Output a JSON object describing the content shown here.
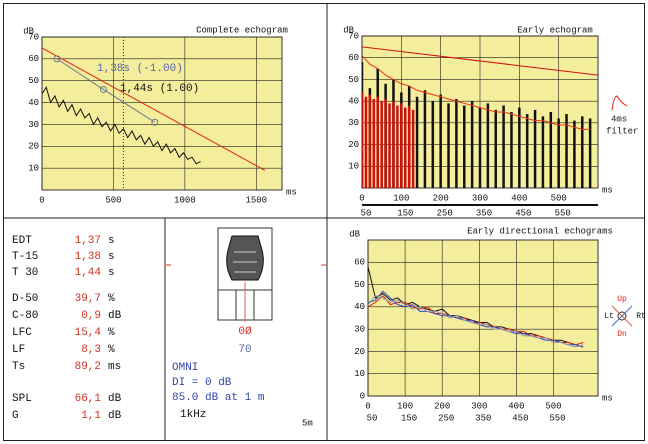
{
  "chart_data": [
    {
      "type": "line",
      "title": "Complete echogram",
      "ylabel": "dB",
      "xlabel": "ms",
      "xlim": [
        0,
        1680
      ],
      "ylim": [
        0,
        70
      ],
      "xticks": [
        0,
        500,
        1000,
        1500
      ],
      "yticks": [
        10,
        20,
        30,
        40,
        50,
        60,
        70
      ],
      "grid": true,
      "cursor_x": 570,
      "annotations": [
        "1,38s (-1.00)",
        "1,44s (1.00)"
      ],
      "series": [
        {
          "style": "line",
          "color": "#111111",
          "x": [
            0,
            30,
            60,
            90,
            120,
            150,
            180,
            210,
            240,
            270,
            300,
            330,
            360,
            390,
            420,
            450,
            480,
            510,
            540,
            570,
            600,
            630,
            660,
            690,
            720,
            750,
            780,
            810,
            840,
            870,
            900,
            930,
            960,
            990,
            1020,
            1050,
            1080,
            1110
          ],
          "values": [
            44,
            47,
            40,
            43,
            38,
            41,
            36,
            39,
            34,
            37,
            33,
            35,
            30,
            33,
            29,
            31,
            27,
            30,
            26,
            28,
            24,
            27,
            23,
            25,
            21,
            24,
            20,
            22,
            18,
            21,
            17,
            19,
            15,
            17,
            14,
            15,
            12,
            13
          ]
        },
        {
          "style": "line",
          "color": "#dd2211",
          "x": [
            0,
            1560
          ],
          "values": [
            65,
            9
          ]
        },
        {
          "style": "markers",
          "color": "#6a7a8a",
          "x": [
            105,
            430,
            790
          ],
          "values": [
            60,
            46,
            31
          ]
        }
      ]
    },
    {
      "type": "line",
      "title": "Early echogram",
      "ylabel": "dB",
      "xlabel": "ms",
      "xlim": [
        0,
        600
      ],
      "ylim": [
        0,
        70
      ],
      "xticks": [
        0,
        100,
        200,
        300,
        400,
        500
      ],
      "yticks": [
        10,
        20,
        30,
        40,
        50,
        60,
        70
      ],
      "grid": true,
      "x2lim": [
        50,
        650
      ],
      "x2ticks": [
        50,
        150,
        250,
        350,
        450,
        550
      ],
      "annotations": [
        "4ms",
        "filter"
      ],
      "series": [
        {
          "style": "bars",
          "color": "#111111",
          "x": [
            0,
            20,
            40,
            60,
            80,
            100,
            120,
            140,
            160,
            180,
            200,
            220,
            240,
            260,
            280,
            300,
            320,
            340,
            360,
            380,
            400,
            420,
            440,
            460,
            480,
            500,
            520,
            540,
            560,
            580
          ],
          "values": [
            58,
            46,
            55,
            48,
            50,
            44,
            47,
            42,
            45,
            40,
            43,
            39,
            41,
            38,
            40,
            37,
            39,
            36,
            38,
            35,
            37,
            34,
            36,
            33,
            35,
            32,
            34,
            31,
            33,
            32
          ]
        },
        {
          "style": "bars",
          "color": "#cc1111",
          "x": [
            0,
            10,
            20,
            30,
            40,
            50,
            60,
            70,
            80,
            90,
            100,
            110,
            120,
            130
          ],
          "values": [
            44,
            42,
            43,
            41,
            42,
            40,
            41,
            39,
            40,
            38,
            39,
            37,
            38,
            36
          ]
        },
        {
          "style": "line",
          "color": "#ee3311",
          "x": [
            0,
            20,
            40,
            60,
            80,
            100,
            120,
            140,
            160,
            180,
            200,
            220,
            240,
            260,
            280,
            300,
            320,
            340,
            360,
            380,
            400,
            420,
            440,
            460,
            480,
            500,
            520,
            540,
            560,
            580
          ],
          "values": [
            61,
            57,
            55,
            52,
            50,
            48,
            47,
            45,
            44,
            43,
            42,
            41,
            40,
            39,
            38,
            37,
            36,
            35,
            35,
            34,
            33,
            32,
            31,
            31,
            30,
            29,
            29,
            28,
            27,
            27
          ]
        },
        {
          "style": "line",
          "color": "#cc1111",
          "x": [
            0,
            600
          ],
          "values": [
            65,
            52
          ]
        }
      ]
    },
    {
      "type": "line",
      "title": "Early directional echograms",
      "ylabel": "dB",
      "xlabel": "ms",
      "xlim": [
        0,
        620
      ],
      "ylim": [
        0,
        70
      ],
      "xticks": [
        0,
        100,
        200,
        300,
        400,
        500
      ],
      "yticks": [
        0,
        10,
        20,
        30,
        40,
        50,
        60
      ],
      "grid": true,
      "x2lim": [
        50,
        670
      ],
      "x2ticks": [
        50,
        150,
        250,
        350,
        450,
        550
      ],
      "direction_labels": [
        "Up",
        "Lt",
        "Rt",
        "Dn"
      ],
      "series": [
        {
          "style": "line",
          "color": "#111111",
          "x": [
            0,
            20,
            40,
            60,
            80,
            100,
            120,
            140,
            160,
            180,
            200,
            220,
            240,
            260,
            280,
            300,
            320,
            340,
            360,
            380,
            400,
            420,
            440,
            460,
            480,
            500,
            520,
            540,
            560,
            580
          ],
          "values": [
            58,
            44,
            46,
            43,
            44,
            41,
            42,
            40,
            39,
            38,
            39,
            36,
            36,
            35,
            34,
            33,
            33,
            31,
            31,
            30,
            29,
            28,
            28,
            27,
            26,
            25,
            25,
            24,
            23,
            22
          ]
        },
        {
          "style": "line",
          "color": "#dd2211",
          "x": [
            0,
            20,
            40,
            60,
            80,
            100,
            120,
            140,
            160,
            180,
            200,
            220,
            240,
            260,
            280,
            300,
            320,
            340,
            360,
            380,
            400,
            420,
            440,
            460,
            480,
            500,
            520,
            540,
            560,
            580
          ],
          "values": [
            40,
            42,
            45,
            41,
            42,
            42,
            40,
            39,
            40,
            37,
            37,
            36,
            35,
            35,
            33,
            33,
            32,
            31,
            30,
            30,
            29,
            29,
            27,
            27,
            26,
            25,
            24,
            24,
            23,
            24
          ]
        },
        {
          "style": "line",
          "color": "#3344cc",
          "x": [
            0,
            20,
            40,
            60,
            80,
            100,
            120,
            140,
            160,
            180,
            200,
            220,
            240,
            260,
            280,
            300,
            320,
            340,
            360,
            380,
            400,
            420,
            440,
            460,
            480,
            500,
            520,
            540,
            560,
            580
          ],
          "values": [
            42,
            43,
            47,
            44,
            41,
            40,
            41,
            38,
            38,
            37,
            36,
            36,
            35,
            34,
            34,
            32,
            31,
            31,
            30,
            29,
            28,
            28,
            27,
            26,
            25,
            25,
            24,
            23,
            23,
            22
          ]
        },
        {
          "style": "line",
          "color": "#8899aa",
          "x": [
            0,
            20,
            40,
            60,
            80,
            100,
            120,
            140,
            160,
            180,
            200,
            220,
            240,
            260,
            280,
            300,
            320,
            340,
            360,
            380,
            400,
            420,
            440,
            460,
            480,
            500,
            520,
            540,
            560,
            580
          ],
          "values": [
            41,
            45,
            44,
            42,
            43,
            41,
            39,
            40,
            38,
            38,
            37,
            35,
            36,
            34,
            33,
            32,
            32,
            30,
            30,
            29,
            29,
            27,
            27,
            26,
            26,
            24,
            24,
            23,
            22,
            23
          ]
        }
      ]
    }
  ],
  "parameters": [
    {
      "name": "EDT",
      "value": "1,37",
      "unit": "s"
    },
    {
      "name": "T-15",
      "value": "1,38",
      "unit": "s"
    },
    {
      "name": "T 30",
      "value": "1,44",
      "unit": "s"
    },
    {
      "name": "D-50",
      "value": "39,7",
      "unit": "%"
    },
    {
      "name": "C-80",
      "value": "0,9",
      "unit": "dB"
    },
    {
      "name": "LFC",
      "value": "15,4",
      "unit": "%"
    },
    {
      "name": "LF",
      "value": "8,3",
      "unit": "%"
    },
    {
      "name": "Ts",
      "value": "89,2",
      "unit": "ms"
    },
    {
      "name": "SPL",
      "value": "66,1",
      "unit": "dB"
    },
    {
      "name": "G",
      "value": "1,1",
      "unit": "dB"
    }
  ],
  "source": {
    "level_labels": [
      "0Ø",
      "70"
    ],
    "lines": [
      "OMNI",
      "DI = 0 dB",
      "85.0 dB at 1 m"
    ],
    "frequency": "1kHz",
    "scale": "5m"
  }
}
